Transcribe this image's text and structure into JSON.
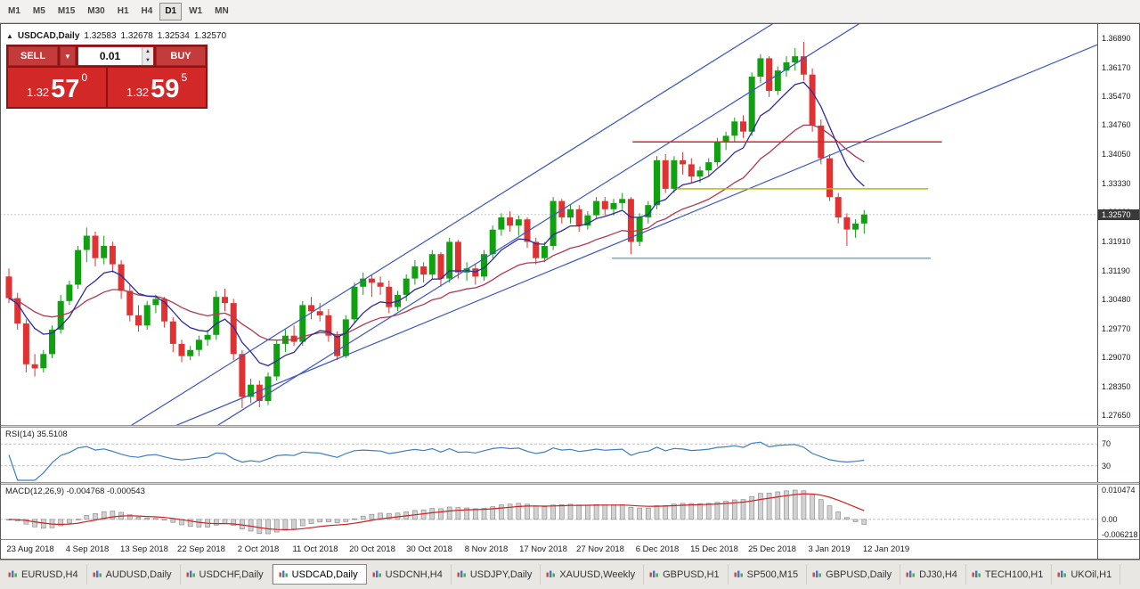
{
  "icons": {
    "up_triangle": "▲",
    "chevron_down": "▼",
    "spinner_up": "▲",
    "spinner_down": "▼"
  },
  "toolbar": {
    "timeframes": [
      {
        "label": "M1",
        "active": false
      },
      {
        "label": "M5",
        "active": false
      },
      {
        "label": "M15",
        "active": false
      },
      {
        "label": "M30",
        "active": false
      },
      {
        "label": "H1",
        "active": false
      },
      {
        "label": "H4",
        "active": false
      },
      {
        "label": "D1",
        "active": true
      },
      {
        "label": "W1",
        "active": false
      },
      {
        "label": "MN",
        "active": false
      }
    ]
  },
  "chart": {
    "header": {
      "symbol": "USDCAD,Daily",
      "open": "1.32583",
      "high": "1.32678",
      "low": "1.32534",
      "close": "1.32570"
    },
    "trade_panel": {
      "sell_label": "SELL",
      "buy_label": "BUY",
      "volume": "0.01",
      "sell_price": {
        "base": "1.32",
        "pips": "57",
        "frac": "0"
      },
      "buy_price": {
        "base": "1.32",
        "pips": "59",
        "frac": "5"
      }
    },
    "current_price": "1.32570"
  },
  "chart_data": {
    "type": "candlestick",
    "symbol": "USDCAD",
    "timeframe": "Daily",
    "price_range": {
      "top": 1.3726,
      "bottom": 1.2741
    },
    "price_axis_labels": [
      "1.36890",
      "1.36170",
      "1.35470",
      "1.34760",
      "1.34050",
      "1.33330",
      "1.32620",
      "1.31910",
      "1.31190",
      "1.30480",
      "1.29770",
      "1.29070",
      "1.28350",
      "1.27650"
    ],
    "date_labels": [
      "23 Aug 2018",
      "4 Sep 2018",
      "13 Sep 2018",
      "22 Sep 2018",
      "2 Oct 2018",
      "11 Oct 2018",
      "20 Oct 2018",
      "30 Oct 2018",
      "8 Nov 2018",
      "17 Nov 2018",
      "27 Nov 2018",
      "6 Dec 2018",
      "15 Dec 2018",
      "25 Dec 2018",
      "3 Jan 2019",
      "12 Jan 2019"
    ],
    "candles": [
      [
        1.3105,
        1.3125,
        1.304,
        1.3052
      ],
      [
        1.3052,
        1.3065,
        1.2975,
        1.299
      ],
      [
        1.299,
        1.3,
        1.287,
        1.289
      ],
      [
        1.289,
        1.2915,
        1.286,
        1.288
      ],
      [
        1.288,
        1.2925,
        1.287,
        1.2915
      ],
      [
        1.2915,
        1.2985,
        1.2905,
        1.2975
      ],
      [
        1.2975,
        1.306,
        1.2965,
        1.3045
      ],
      [
        1.3045,
        1.3095,
        1.3035,
        1.3085
      ],
      [
        1.3085,
        1.318,
        1.3075,
        1.317
      ],
      [
        1.317,
        1.3225,
        1.314,
        1.3205
      ],
      [
        1.3205,
        1.3215,
        1.313,
        1.315
      ],
      [
        1.315,
        1.3205,
        1.3135,
        1.318
      ],
      [
        1.318,
        1.319,
        1.3115,
        1.3135
      ],
      [
        1.3135,
        1.3145,
        1.305,
        1.307
      ],
      [
        1.307,
        1.3085,
        1.2995,
        1.301
      ],
      [
        1.301,
        1.3035,
        1.297,
        1.2985
      ],
      [
        1.2985,
        1.3045,
        1.2975,
        1.3035
      ],
      [
        1.3035,
        1.306,
        1.3015,
        1.305
      ],
      [
        1.305,
        1.3055,
        1.298,
        1.2995
      ],
      [
        1.2995,
        1.3005,
        1.292,
        1.294
      ],
      [
        1.294,
        1.295,
        1.2895,
        1.291
      ],
      [
        1.291,
        1.2935,
        1.29,
        1.2925
      ],
      [
        1.2925,
        1.296,
        1.291,
        1.295
      ],
      [
        1.295,
        1.2975,
        1.2935,
        1.2962
      ],
      [
        1.2962,
        1.307,
        1.295,
        1.3055
      ],
      [
        1.3055,
        1.3075,
        1.302,
        1.304
      ],
      [
        1.304,
        1.305,
        1.29,
        1.2915
      ],
      [
        1.2915,
        1.2925,
        1.2783,
        1.281
      ],
      [
        1.281,
        1.2855,
        1.2795,
        1.284
      ],
      [
        1.284,
        1.285,
        1.2785,
        1.28
      ],
      [
        1.28,
        1.287,
        1.279,
        1.286
      ],
      [
        1.286,
        1.295,
        1.285,
        1.294
      ],
      [
        1.294,
        1.2975,
        1.292,
        1.296
      ],
      [
        1.296,
        1.2985,
        1.2935,
        1.2945
      ],
      [
        1.2945,
        1.3045,
        1.2935,
        1.3035
      ],
      [
        1.3035,
        1.3055,
        1.3,
        1.302
      ],
      [
        1.302,
        1.304,
        1.2995,
        1.301
      ],
      [
        1.301,
        1.3025,
        1.2945,
        1.296
      ],
      [
        1.296,
        1.297,
        1.29,
        1.291
      ],
      [
        1.291,
        1.301,
        1.2905,
        1.3
      ],
      [
        1.3,
        1.309,
        1.299,
        1.308
      ],
      [
        1.308,
        1.3115,
        1.306,
        1.31
      ],
      [
        1.31,
        1.311,
        1.3055,
        1.309
      ],
      [
        1.309,
        1.3105,
        1.306,
        1.308
      ],
      [
        1.308,
        1.3095,
        1.3015,
        1.303
      ],
      [
        1.303,
        1.307,
        1.302,
        1.306
      ],
      [
        1.306,
        1.311,
        1.3045,
        1.31
      ],
      [
        1.31,
        1.3145,
        1.3085,
        1.313
      ],
      [
        1.313,
        1.314,
        1.309,
        1.311
      ],
      [
        1.311,
        1.317,
        1.31,
        1.316
      ],
      [
        1.316,
        1.3165,
        1.308,
        1.31
      ],
      [
        1.31,
        1.32,
        1.309,
        1.319
      ],
      [
        1.319,
        1.3195,
        1.31,
        1.3115
      ],
      [
        1.3115,
        1.314,
        1.3095,
        1.3125
      ],
      [
        1.3125,
        1.3135,
        1.3085,
        1.3105
      ],
      [
        1.3105,
        1.317,
        1.3095,
        1.316
      ],
      [
        1.316,
        1.323,
        1.315,
        1.322
      ],
      [
        1.322,
        1.326,
        1.3205,
        1.325
      ],
      [
        1.325,
        1.3265,
        1.3215,
        1.323
      ],
      [
        1.323,
        1.3255,
        1.3205,
        1.3245
      ],
      [
        1.3245,
        1.325,
        1.3175,
        1.319
      ],
      [
        1.319,
        1.32,
        1.3135,
        1.315
      ],
      [
        1.315,
        1.319,
        1.314,
        1.318
      ],
      [
        1.318,
        1.33,
        1.317,
        1.329
      ],
      [
        1.329,
        1.3295,
        1.3235,
        1.325
      ],
      [
        1.325,
        1.328,
        1.3235,
        1.327
      ],
      [
        1.327,
        1.328,
        1.3215,
        1.323
      ],
      [
        1.323,
        1.3265,
        1.322,
        1.3255
      ],
      [
        1.3255,
        1.33,
        1.3245,
        1.329
      ],
      [
        1.329,
        1.33,
        1.3255,
        1.327
      ],
      [
        1.327,
        1.3295,
        1.3255,
        1.3285
      ],
      [
        1.3285,
        1.331,
        1.327,
        1.3295
      ],
      [
        1.3295,
        1.33,
        1.316,
        1.319
      ],
      [
        1.319,
        1.326,
        1.318,
        1.325
      ],
      [
        1.325,
        1.329,
        1.3235,
        1.328
      ],
      [
        1.328,
        1.34,
        1.327,
        1.339
      ],
      [
        1.339,
        1.3405,
        1.331,
        1.332
      ],
      [
        1.332,
        1.34,
        1.331,
        1.339
      ],
      [
        1.339,
        1.341,
        1.3355,
        1.338
      ],
      [
        1.338,
        1.3395,
        1.3335,
        1.335
      ],
      [
        1.335,
        1.3375,
        1.3335,
        1.3365
      ],
      [
        1.3365,
        1.3395,
        1.335,
        1.3385
      ],
      [
        1.3385,
        1.3445,
        1.3375,
        1.3435
      ],
      [
        1.3435,
        1.346,
        1.3415,
        1.345
      ],
      [
        1.345,
        1.3495,
        1.3435,
        1.3485
      ],
      [
        1.3485,
        1.35,
        1.3445,
        1.346
      ],
      [
        1.346,
        1.3605,
        1.345,
        1.3595
      ],
      [
        1.3595,
        1.365,
        1.358,
        1.364
      ],
      [
        1.364,
        1.3645,
        1.3545,
        1.356
      ],
      [
        1.356,
        1.362,
        1.355,
        1.361
      ],
      [
        1.361,
        1.3645,
        1.3595,
        1.363
      ],
      [
        1.363,
        1.3665,
        1.361,
        1.3645
      ],
      [
        1.3645,
        1.368,
        1.3585,
        1.36
      ],
      [
        1.36,
        1.3615,
        1.346,
        1.3475
      ],
      [
        1.3475,
        1.349,
        1.338,
        1.3395
      ],
      [
        1.3395,
        1.3405,
        1.329,
        1.33
      ],
      [
        1.33,
        1.331,
        1.3235,
        1.325
      ],
      [
        1.325,
        1.326,
        1.318,
        1.322
      ],
      [
        1.322,
        1.3245,
        1.32,
        1.3235
      ],
      [
        1.3235,
        1.3268,
        1.321,
        1.3257
      ]
    ],
    "moving_averages": [
      {
        "type": "ema",
        "period": 21,
        "color": "#b0384f"
      },
      {
        "type": "ema",
        "period": 8,
        "color": "#2b2b9e"
      }
    ],
    "trendlines": [
      {
        "i1": 14,
        "p1": 1.2738,
        "i2": 92,
        "p2": 1.3772,
        "color": "#3c55c0"
      },
      {
        "i1": 24,
        "p1": 1.2738,
        "i2": 102,
        "p2": 1.3772,
        "color": "#3c55c0"
      },
      {
        "i1": -1,
        "p1": 1.2562,
        "i2": 131,
        "p2": 1.3717,
        "color": "#3c55c0"
      }
    ],
    "hlines": [
      {
        "price": 1.3435,
        "i1": 72.2,
        "i2": 108,
        "color": "#e02222"
      },
      {
        "price": 1.332,
        "i1": 77.3,
        "i2": 106.4,
        "color": "#b6bb00"
      },
      {
        "price": 1.315,
        "i1": 69.8,
        "i2": 106.7,
        "color": "#5fb3e6"
      }
    ],
    "rsi": {
      "label": "RSI(14) 35.5108",
      "period": 14,
      "levels": [
        70,
        30
      ],
      "axis_labels": [
        "70",
        "30"
      ],
      "color": "#3f7fc1"
    },
    "macd": {
      "label": "MACD(12,26,9) -0.004768 -0.000543",
      "params": [
        12,
        26,
        9
      ],
      "axis_labels": [
        "0.010474",
        "0.00",
        "-0.006218"
      ],
      "bar_color": "#d2d2d2",
      "bar_border": "#8f8f8f",
      "signal_color": "#cc2222"
    },
    "colors": {
      "up": "#10a010",
      "down": "#e03232",
      "background": "#ffffff",
      "bid_line": "#c9c9c9"
    }
  },
  "tabs": [
    {
      "label": "EURUSD,H4",
      "active": false
    },
    {
      "label": "AUDUSD,Daily",
      "active": false
    },
    {
      "label": "USDCHF,Daily",
      "active": false
    },
    {
      "label": "USDCAD,Daily",
      "active": true
    },
    {
      "label": "USDCNH,H4",
      "active": false
    },
    {
      "label": "USDJPY,Daily",
      "active": false
    },
    {
      "label": "XAUUSD,Weekly",
      "active": false
    },
    {
      "label": "GBPUSD,H1",
      "active": false
    },
    {
      "label": "SP500,M15",
      "active": false
    },
    {
      "label": "GBPUSD,Daily",
      "active": false
    },
    {
      "label": "DJ30,H4",
      "active": false
    },
    {
      "label": "TECH100,H1",
      "active": false
    },
    {
      "label": "UKOil,H1",
      "active": false
    }
  ]
}
